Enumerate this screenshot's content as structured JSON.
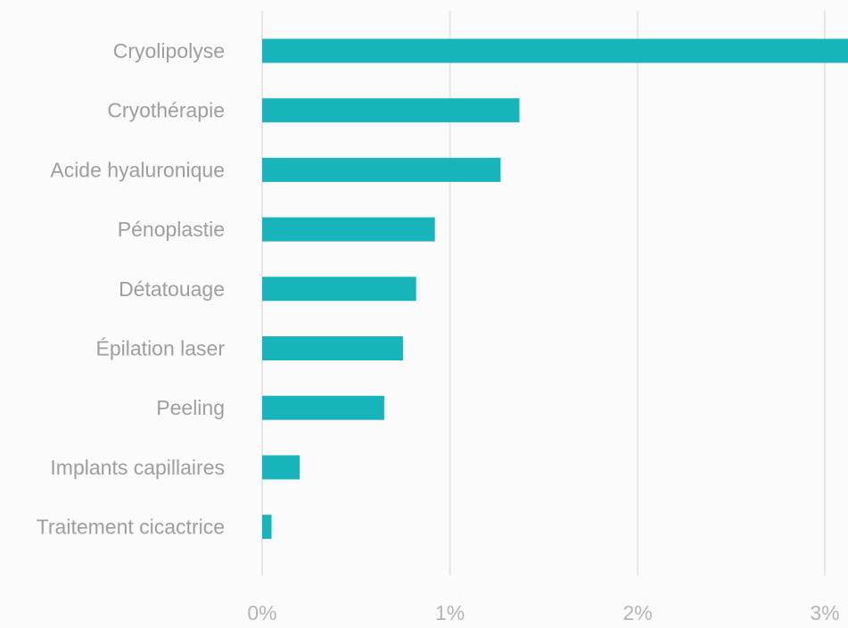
{
  "chart_data": {
    "type": "bar",
    "orientation": "horizontal",
    "categories": [
      "Cryolipolyse",
      "Cryothérapie",
      "Acide hyaluronique",
      "Pénoplastie",
      "Détatouage",
      "Épilation laser",
      "Peeling",
      "Implants capillaires",
      "Traitement cicactrice"
    ],
    "values": [
      3.12,
      1.37,
      1.27,
      0.92,
      0.82,
      0.75,
      0.65,
      0.2,
      0.05
    ],
    "xticks": [
      0,
      1,
      2,
      3
    ],
    "xtick_labels": [
      "0%",
      "1%",
      "2%",
      "3%"
    ],
    "xlim": [
      0,
      3.12
    ],
    "grid": true,
    "colors": {
      "bar": "#18b4bc",
      "grid": "#e6e6e6",
      "category_text": "#9e9e9e",
      "tick_text": "#b5b5b5"
    }
  }
}
